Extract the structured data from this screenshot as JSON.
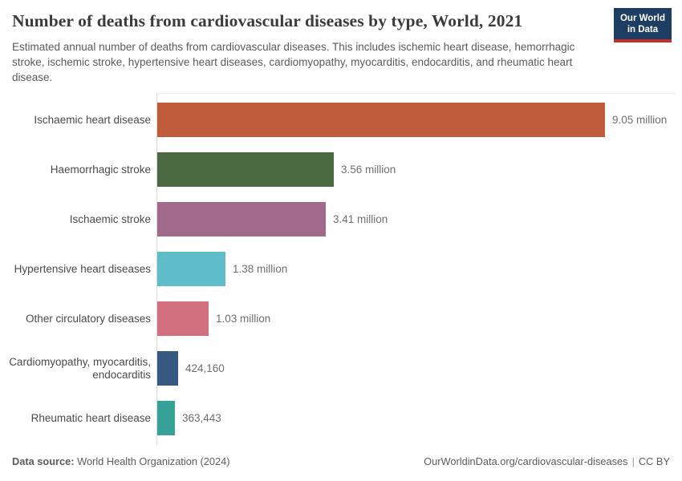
{
  "header": {
    "title": "Number of deaths from cardiovascular diseases by type, World, 2021",
    "subtitle": "Estimated annual number of deaths from cardiovascular diseases. This includes ischemic heart disease, hemorrhagic stroke, ischemic stroke, hypertensive heart diseases, cardiomyopathy, myocarditis, endocarditis, and rheumatic heart disease.",
    "logo": {
      "line1": "Our World",
      "line2": "in Data",
      "bg_color": "#1d3d63",
      "accent_color": "#c2302a"
    }
  },
  "chart_data": {
    "type": "bar",
    "orientation": "horizontal",
    "title": "Number of deaths from cardiovascular diseases by type, World, 2021",
    "categories": [
      "Ischaemic heart disease",
      "Haemorrhagic stroke",
      "Ischaemic stroke",
      "Hypertensive heart diseases",
      "Other circulatory diseases",
      "Cardiomyopathy, myocarditis, endocarditis",
      "Rheumatic heart disease"
    ],
    "values": [
      9050000,
      3560000,
      3410000,
      1380000,
      1030000,
      424160,
      363443
    ],
    "value_labels": [
      "9.05 million",
      "3.56 million",
      "3.41 million",
      "1.38 million",
      "1.03 million",
      "424,160",
      "363,443"
    ],
    "colors": [
      "#c05b3c",
      "#4c6a41",
      "#a16a8b",
      "#5ebdc9",
      "#d3707f",
      "#375880",
      "#36a297"
    ],
    "xlim": [
      0,
      9050000
    ],
    "grid": false,
    "legend": "none",
    "axis_line_color": "#d9d9d9"
  },
  "footer": {
    "datasource_label": "Data source:",
    "datasource_value": "World Health Organization (2024)",
    "url": "OurWorldinData.org/cardiovascular-diseases",
    "separator": "|",
    "license": "CC BY"
  }
}
